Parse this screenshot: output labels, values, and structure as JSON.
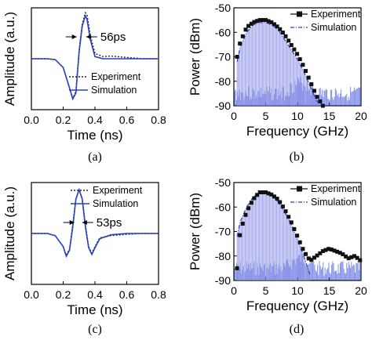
{
  "colors": {
    "simulation": "#2b3fc0",
    "experiment": "#222222",
    "sim_fill": "#8c93e6",
    "noise": "#1f35d6"
  },
  "chart_data": [
    {
      "id": "a",
      "type": "line",
      "caption": "(a)",
      "xlabel": "Time (ns)",
      "ylabel": "Amplitude (a.u.)",
      "xlim": [
        0,
        0.8
      ],
      "xticks": [
        "0.0",
        "0.2",
        "0.4",
        "0.6",
        "0.8"
      ],
      "annotation": "56ps",
      "legend": [
        "Experiment",
        "Simulation"
      ],
      "legend_position": "bottom-right",
      "series": [
        {
          "name": "Experiment",
          "style": "dotted",
          "x": [
            0.0,
            0.1,
            0.15,
            0.2,
            0.23,
            0.26,
            0.28,
            0.3,
            0.32,
            0.34,
            0.35,
            0.37,
            0.4,
            0.45,
            0.5,
            0.6,
            0.7,
            0.8
          ],
          "y": [
            0.0,
            0.0,
            -0.02,
            -0.2,
            -0.55,
            -0.9,
            -0.75,
            0.2,
            0.8,
            1.05,
            1.0,
            0.55,
            0.12,
            0.05,
            0.06,
            0.03,
            0.0,
            0.0
          ]
        },
        {
          "name": "Simulation",
          "style": "solid",
          "x": [
            0.0,
            0.1,
            0.15,
            0.2,
            0.23,
            0.26,
            0.28,
            0.3,
            0.32,
            0.34,
            0.35,
            0.37,
            0.4,
            0.45,
            0.5,
            0.6,
            0.7,
            0.8
          ],
          "y": [
            0.0,
            0.0,
            -0.02,
            -0.2,
            -0.55,
            -0.92,
            -0.78,
            0.15,
            0.75,
            0.98,
            0.9,
            0.45,
            0.05,
            0.0,
            0.0,
            0.0,
            0.0,
            0.0
          ]
        }
      ]
    },
    {
      "id": "b",
      "type": "bar",
      "caption": "(b)",
      "xlabel": "Frequency (GHz)",
      "ylabel": "Power (dBm)",
      "xlim": [
        0,
        20
      ],
      "ylim": [
        -90,
        -50
      ],
      "xticks": [
        "0",
        "5",
        "10",
        "15",
        "20"
      ],
      "yticks": [
        "-50",
        "-60",
        "-70",
        "-80",
        "-90"
      ],
      "legend": [
        "Experiment",
        "Simulation"
      ],
      "legend_position": "top-right",
      "series": [
        {
          "name": "Experiment",
          "style": "squares",
          "x": [
            0.5,
            1,
            2,
            3,
            4,
            5,
            6,
            7,
            8,
            9,
            10,
            11,
            12,
            13,
            14
          ],
          "y": [
            -70,
            -64,
            -58,
            -56,
            -55,
            -55,
            -56,
            -58,
            -61,
            -65,
            -69,
            -74,
            -80,
            -86,
            -90
          ]
        },
        {
          "name": "Simulation",
          "style": "dash-dot-bars",
          "x": [
            0.5,
            1,
            2,
            3,
            4,
            5,
            6,
            7,
            8,
            9,
            10,
            11,
            12,
            13,
            14
          ],
          "y": [
            -72,
            -66,
            -60,
            -57,
            -56,
            -56,
            -57,
            -59,
            -63,
            -67,
            -71,
            -76,
            -82,
            -88,
            -90
          ]
        }
      ]
    },
    {
      "id": "c",
      "type": "line",
      "caption": "(c)",
      "xlabel": "Time (ns)",
      "ylabel": "Amplitude (a.u.)",
      "xlim": [
        0,
        0.8
      ],
      "xticks": [
        "0.0",
        "0.2",
        "0.4",
        "0.6",
        "0.8"
      ],
      "annotation": "53ps",
      "legend": [
        "Experiment",
        "Simulation"
      ],
      "legend_position": "top-right",
      "series": [
        {
          "name": "Experiment",
          "style": "dotted",
          "x": [
            0.0,
            0.1,
            0.15,
            0.2,
            0.22,
            0.24,
            0.26,
            0.28,
            0.3,
            0.32,
            0.34,
            0.36,
            0.38,
            0.4,
            0.43,
            0.5,
            0.6,
            0.7,
            0.8
          ],
          "y": [
            0.0,
            0.0,
            -0.05,
            -0.3,
            -0.5,
            -0.35,
            0.2,
            0.8,
            1.0,
            0.8,
            0.2,
            -0.3,
            -0.45,
            -0.3,
            -0.1,
            -0.05,
            -0.02,
            0.0,
            0.0
          ]
        },
        {
          "name": "Simulation",
          "style": "solid",
          "x": [
            0.0,
            0.1,
            0.15,
            0.2,
            0.22,
            0.24,
            0.26,
            0.28,
            0.3,
            0.32,
            0.34,
            0.36,
            0.38,
            0.4,
            0.43,
            0.5,
            0.6,
            0.7,
            0.8
          ],
          "y": [
            0.0,
            0.0,
            -0.05,
            -0.3,
            -0.52,
            -0.38,
            0.15,
            0.78,
            1.0,
            0.78,
            0.15,
            -0.32,
            -0.48,
            -0.33,
            -0.12,
            -0.03,
            0.0,
            0.0,
            0.0
          ]
        }
      ]
    },
    {
      "id": "d",
      "type": "bar",
      "caption": "(d)",
      "xlabel": "Frequency (GHz)",
      "ylabel": "Power (dBm)",
      "xlim": [
        0,
        20
      ],
      "ylim": [
        -90,
        -50
      ],
      "xticks": [
        "0",
        "5",
        "10",
        "15",
        "20"
      ],
      "yticks": [
        "-50",
        "-60",
        "-70",
        "-80",
        "-90"
      ],
      "legend": [
        "Experiment",
        "Simulation"
      ],
      "legend_position": "top-right",
      "series": [
        {
          "name": "Experiment",
          "style": "squares",
          "x": [
            0.5,
            1,
            2,
            3,
            4,
            5,
            6,
            7,
            8,
            9,
            10,
            11,
            12,
            13,
            14,
            15,
            16,
            17,
            18,
            19,
            20
          ],
          "y": [
            -85,
            -70,
            -62,
            -57,
            -54,
            -54,
            -55,
            -57,
            -61,
            -66,
            -72,
            -78,
            -82,
            -80,
            -78,
            -77,
            -78,
            -79,
            -81,
            -80,
            -82
          ]
        },
        {
          "name": "Simulation",
          "style": "dash-dot-bars",
          "x": [
            0.5,
            1,
            2,
            3,
            4,
            5,
            6,
            7,
            8,
            9,
            10,
            11,
            12
          ],
          "y": [
            -72,
            -66,
            -60,
            -56,
            -54,
            -54,
            -55,
            -58,
            -62,
            -67,
            -73,
            -80,
            -88
          ]
        }
      ]
    }
  ]
}
